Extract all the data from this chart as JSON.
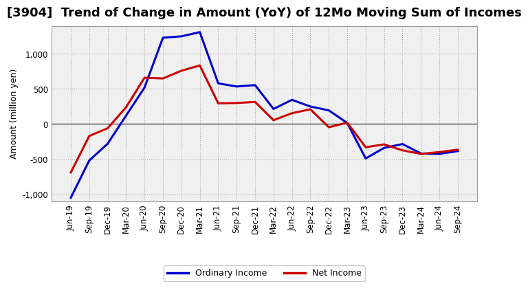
{
  "title": "[3904]  Trend of Change in Amount (YoY) of 12Mo Moving Sum of Incomes",
  "ylabel": "Amount (million yen)",
  "x_labels": [
    "Jun-19",
    "Sep-19",
    "Dec-19",
    "Mar-20",
    "Jun-20",
    "Sep-20",
    "Dec-20",
    "Mar-21",
    "Jun-21",
    "Sep-21",
    "Dec-21",
    "Mar-22",
    "Jun-22",
    "Sep-22",
    "Dec-22",
    "Mar-23",
    "Jun-23",
    "Sep-23",
    "Dec-23",
    "Mar-24",
    "Jun-24",
    "Sep-24"
  ],
  "ordinary_income": [
    -1050,
    -520,
    -280,
    120,
    520,
    1230,
    1250,
    1310,
    580,
    535,
    555,
    215,
    345,
    250,
    195,
    15,
    -490,
    -340,
    -285,
    -420,
    -425,
    -385
  ],
  "net_income": [
    -690,
    -170,
    -60,
    240,
    660,
    650,
    760,
    835,
    295,
    300,
    315,
    55,
    155,
    210,
    -45,
    20,
    -330,
    -290,
    -375,
    -425,
    -400,
    -365
  ],
  "ordinary_color": "#0000cc",
  "net_color": "#cc0000",
  "ylim": [
    -1100,
    1400
  ],
  "yticks": [
    -1000,
    -500,
    0,
    500,
    1000
  ],
  "plot_bg": "#f0f0f0",
  "legend_labels": [
    "Ordinary Income",
    "Net Income"
  ],
  "line_width": 2.2,
  "title_fontsize": 13,
  "axis_fontsize": 8.5,
  "ylabel_fontsize": 9
}
